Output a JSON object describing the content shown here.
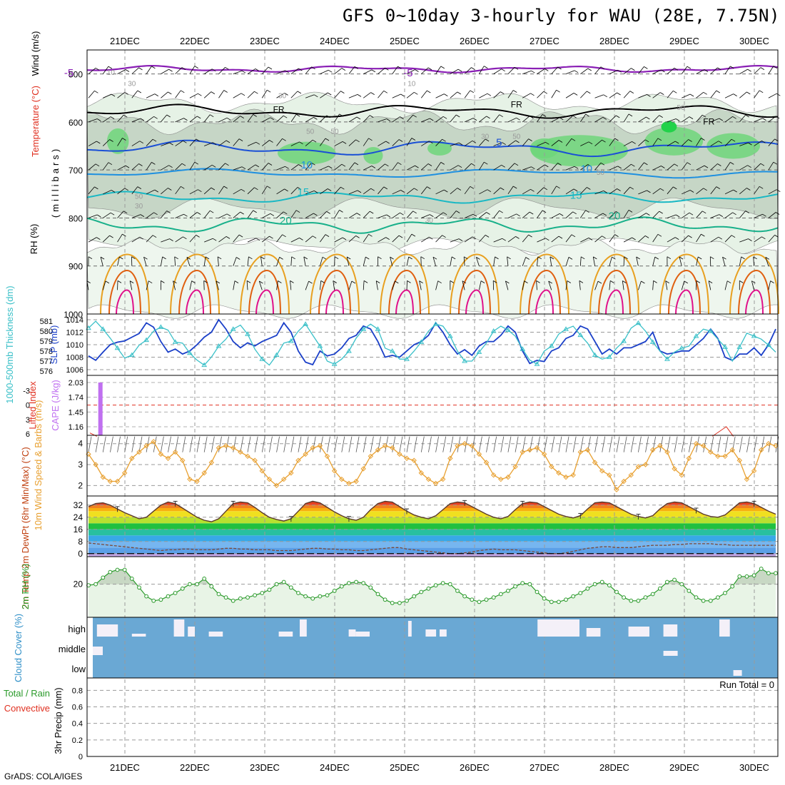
{
  "title": "GFS 0~10day 3-hourly for WAU (28E, 7.75N)",
  "credit": "GrADS: COLA/IGES",
  "colors": {
    "rh_fill_light": "#e6f2e6",
    "rh_fill_mid": "#c6d6c6",
    "rh_fill_dark": "#6fd67a",
    "wind_barb": "#000000",
    "temp_violet": "#8a1fb5",
    "temp_blue": "#1a4fd6",
    "temp_cyan": "#19b8c4",
    "temp_teal": "#18b08a",
    "temp_orange": "#e8a020",
    "temp_darkorange": "#e06010",
    "temp_magenta": "#e0108a",
    "slp_line": "#1a3fc8",
    "thickness_line": "#3ac0c8",
    "lifted_index": "#e03020",
    "cape_bar": "#c070f0",
    "wind_speed": "#e8a030",
    "cloud_blue": "#6aa8d4",
    "cloud_clear": "#f4f0f8",
    "rh_green": "#2a9a2a"
  },
  "chart_data": [
    {
      "panel": "upper_air",
      "type": "heatmap",
      "ylabel": "(millibars)",
      "ylabel_rh": "RH (%)",
      "ylabel_temp": "Temperature (°C)",
      "ylabel_wind": "Wind (m/s)",
      "yticks": [
        "500",
        "600",
        "700",
        "800",
        "900",
        "1000"
      ],
      "ylim": [
        1000,
        450
      ],
      "contour_labels": [
        {
          "text": "-5",
          "level_mb": 505,
          "day": 20.2
        },
        {
          "text": "-5",
          "level_mb": 505,
          "day": 25.05
        },
        {
          "text": "FR",
          "level_mb": 580,
          "day": 23.2
        },
        {
          "text": "FR",
          "level_mb": 570,
          "day": 26.6
        },
        {
          "text": "FR",
          "level_mb": 605,
          "day": 29.35
        },
        {
          "text": "5",
          "level_mb": 650,
          "day": 26.35
        },
        {
          "text": "10",
          "level_mb": 697,
          "day": 23.6
        },
        {
          "text": "10",
          "level_mb": 705,
          "day": 27.6
        },
        {
          "text": "15",
          "level_mb": 753,
          "day": 23.55
        },
        {
          "text": "15",
          "level_mb": 760,
          "day": 27.45
        },
        {
          "text": "20",
          "level_mb": 813,
          "day": 23.3
        },
        {
          "text": "20",
          "level_mb": 803,
          "day": 28.0
        }
      ],
      "rh_labels": [
        {
          "text": "10",
          "level_mb": 502,
          "day": 20.8
        },
        {
          "text": "30",
          "level_mb": 525,
          "day": 21.1
        },
        {
          "text": "50",
          "level_mb": 625,
          "day": 23.65
        },
        {
          "text": "30",
          "level_mb": 550,
          "day": 23.25
        },
        {
          "text": "10",
          "level_mb": 525,
          "day": 25.1
        },
        {
          "text": "50",
          "level_mb": 625,
          "day": 24.0
        },
        {
          "text": "30",
          "level_mb": 635,
          "day": 26.15
        },
        {
          "text": "50",
          "level_mb": 635,
          "day": 26.6
        },
        {
          "text": "50",
          "level_mb": 760,
          "day": 21.2
        },
        {
          "text": "30",
          "level_mb": 780,
          "day": 21.2
        },
        {
          "text": "30",
          "level_mb": 810,
          "day": 25.35
        },
        {
          "text": "50",
          "level_mb": 710,
          "day": 27.8
        },
        {
          "text": "50",
          "level_mb": 575,
          "day": 28.95
        }
      ],
      "temperature_contours_c": [
        -5,
        0,
        5,
        10,
        15,
        20
      ]
    },
    {
      "panel": "thickness_slp",
      "type": "line",
      "ylabel_left": "1000-500mb Thickness (dm)",
      "ylabel_right": "SLP (mb)",
      "thickness_ticks": [
        "576",
        "577",
        "578",
        "579",
        "580",
        "581"
      ],
      "slp_ticks": [
        "1006",
        "1008",
        "1010",
        "1012",
        "1014"
      ],
      "series": [
        {
          "name": "SLP",
          "unit": "mb",
          "values": [
            1008.2,
            1007.5,
            1008.8,
            1010.0,
            1010.4,
            1010.6,
            1011.2,
            1011.8,
            1013.5,
            1012.8,
            1010.5,
            1008.8,
            1009.3,
            1008.5,
            1009.0,
            1010.0,
            1011.2,
            1012.0,
            1014.0,
            1012.5,
            1010.5,
            1009.5,
            1010.3,
            1009.8,
            1010.5,
            1011.0,
            1011.5,
            1013.5,
            1012.0,
            1009.0,
            1007.2,
            1006.8,
            1009.0,
            1008.2,
            1008.5,
            1009.5,
            1011.0,
            1011.5,
            1013.0,
            1012.5,
            1010.5,
            1008.0,
            1008.3,
            1008.0,
            1009.0,
            1010.0,
            1010.5,
            1011.5,
            1013.5,
            1012.0,
            1010.0,
            1008.5,
            1009.2,
            1008.3,
            1009.8,
            1010.5,
            1010.5,
            1011.5,
            1013.0,
            1012.0,
            1009.0,
            1007.0,
            1007.5,
            1007.3,
            1009.0,
            1009.5,
            1011.0,
            1011.5,
            1013.0,
            1012.5,
            1010.5,
            1008.5,
            1009.3,
            1008.5,
            1009.5,
            1009.5,
            1010.0,
            1010.5,
            1012.0,
            1009.0,
            1008.5,
            1008.7,
            1009.0,
            1009.0,
            1010.0,
            1011.0,
            1012.5,
            1011.0,
            1008.0,
            1007.5,
            1008.5,
            1008.5,
            1009.5,
            1008.3,
            1010.0,
            1012.5
          ]
        },
        {
          "name": "Thickness",
          "unit": "dm",
          "values": [
            580.3,
            581.0,
            580.2,
            579.3,
            578.3,
            577.3,
            577.6,
            578.6,
            579.1,
            580.0,
            580.4,
            580.1,
            578.9,
            578.8,
            577.8,
            577.1,
            576.6,
            577.4,
            578.5,
            579.2,
            580.2,
            580.6,
            579.7,
            578.2,
            577.2,
            576.6,
            577.6,
            578.8,
            579.0,
            580.0,
            580.7,
            579.6,
            578.5,
            577.0,
            576.7,
            577.2,
            578.0,
            579.3,
            580.2,
            580.7,
            580.2,
            578.3,
            578.0,
            577.2,
            577.2,
            578.0,
            578.9,
            580.0,
            580.7,
            580.5,
            579.5,
            578.0,
            577.0,
            577.0,
            577.9,
            578.8,
            580.0,
            580.5,
            580.1,
            579.5,
            578.2,
            577.1,
            576.7,
            578.0,
            578.5,
            579.7,
            580.2,
            580.5,
            579.6,
            578.8,
            577.6,
            577.2,
            577.4,
            578.3,
            579.0,
            580.3,
            580.8,
            580.0,
            578.9,
            578.0,
            577.2,
            577.9,
            578.3,
            578.5,
            579.5,
            580.2,
            580.0,
            579.2,
            578.4,
            577.0,
            578.4,
            579.8,
            579.5,
            579.2,
            578.6,
            577.9
          ]
        }
      ]
    },
    {
      "panel": "cape_li",
      "type": "bar",
      "ylabel_left": "Lifted Index",
      "ylabel_right": "CAPE (J/kg)",
      "li_ticks": [
        "-3",
        "0",
        "3",
        "6"
      ],
      "cape_ticks": [
        "1.16",
        "1.45",
        "1.74",
        "2.03"
      ],
      "cape_bar": {
        "day": 20.65,
        "value": 2.03
      },
      "series": [
        {
          "name": "Lifted Index",
          "values_by_day": [
            [
              20.5,
              5.8
            ],
            [
              20.6,
              6.5
            ],
            [
              29.4,
              6.5
            ],
            [
              29.6,
              4.5
            ],
            [
              29.7,
              6.5
            ]
          ]
        }
      ]
    },
    {
      "panel": "wind_10m",
      "type": "line",
      "ylabel": "10m Wind Speed & Barbs (m/s)",
      "yticks": [
        "2",
        "3",
        "4"
      ],
      "ylim": [
        1.5,
        4.4
      ],
      "series": [
        {
          "name": "10m Wind Speed",
          "values": [
            3.5,
            3.0,
            2.4,
            2.2,
            2.2,
            2.6,
            3.3,
            3.6,
            3.9,
            4.1,
            3.5,
            3.3,
            3.6,
            3.2,
            2.3,
            2.2,
            2.6,
            3.1,
            3.8,
            3.9,
            3.8,
            3.6,
            3.4,
            3.2,
            2.7,
            2.3,
            2.0,
            2.3,
            2.6,
            3.2,
            3.5,
            3.8,
            3.9,
            3.4,
            2.7,
            2.3,
            2.1,
            2.2,
            2.8,
            3.4,
            3.7,
            3.9,
            3.8,
            3.5,
            3.3,
            3.2,
            2.6,
            2.3,
            2.1,
            2.3,
            3.3,
            3.9,
            4.0,
            3.9,
            3.5,
            3.1,
            2.5,
            2.3,
            2.4,
            2.9,
            3.6,
            3.7,
            3.8,
            3.5,
            2.9,
            2.6,
            2.4,
            2.5,
            3.6,
            3.7,
            3.1,
            2.7,
            2.5,
            1.8,
            2.2,
            2.5,
            2.9,
            3.0,
            3.7,
            3.9,
            3.6,
            2.8,
            2.5,
            3.3,
            4.0,
            3.9,
            3.6,
            3.4,
            3.4,
            3.7,
            3.2,
            2.3,
            2.7,
            3.7,
            4.0,
            3.9
          ]
        }
      ]
    },
    {
      "panel": "temp_2m",
      "type": "area",
      "ylabel": "2m Temp 2m DewPt (6hr Min/Max) (°C)",
      "yticks": [
        "0",
        "8",
        "16",
        "24",
        "32"
      ],
      "ylim": [
        -2,
        38
      ],
      "series": [
        {
          "name": "2m Temp",
          "values": [
            31,
            33,
            33.5,
            32,
            29.5,
            27,
            25,
            23,
            24,
            28,
            32,
            34,
            33,
            30,
            27,
            24,
            22,
            21,
            23,
            28,
            33,
            34,
            33.5,
            30.5,
            27,
            24,
            22.5,
            21.5,
            23,
            28,
            33,
            34.5,
            33.5,
            30.5,
            27.5,
            25,
            23,
            22,
            24,
            29,
            33,
            34.5,
            34,
            31,
            28,
            25.5,
            24,
            23,
            25,
            29,
            33,
            34,
            33.5,
            31,
            28.5,
            26,
            24,
            23,
            24.5,
            29,
            33,
            34,
            33.5,
            31,
            28.5,
            26,
            24.5,
            23.5,
            25,
            29.5,
            33.5,
            34,
            33.5,
            31,
            28.5,
            26,
            24.5,
            23.5,
            25,
            29.5,
            33,
            34,
            33.5,
            31,
            28.5,
            26,
            24.5,
            24,
            25.5,
            29.5,
            33.5,
            34,
            33,
            30.5,
            28,
            26
          ]
        },
        {
          "name": "2m DewPt",
          "values": [
            7,
            6.5,
            6,
            5.5,
            5,
            4.5,
            4,
            3.5,
            3,
            2.5,
            2,
            2.5,
            2.5,
            3,
            3,
            2.5,
            2.5,
            2.5,
            3,
            3.5,
            3.5,
            3,
            3,
            2.5,
            2.5,
            2.5,
            2,
            2,
            2,
            2.5,
            3,
            3.5,
            3.5,
            3,
            3,
            2.5,
            2.5,
            2,
            2,
            2.5,
            3,
            3.5,
            4,
            4,
            3,
            2.5,
            2,
            1.5,
            1,
            0.5,
            0,
            0,
            0.5,
            1,
            2,
            2.5,
            3,
            2.5,
            2.5,
            2.5,
            2,
            1.5,
            1,
            0.5,
            0,
            0,
            0.5,
            1.5,
            2.5,
            3.5,
            4,
            4.5,
            4.5,
            4,
            4,
            4,
            4.5,
            5,
            5.5,
            5.5,
            5.5,
            6,
            6,
            6.5,
            6.5,
            6.5,
            6.5,
            6,
            6,
            5.5,
            5.5,
            5.5,
            5.5,
            5.5,
            5.5,
            5.5
          ]
        }
      ]
    },
    {
      "panel": "rh_2m",
      "type": "line",
      "ylabel": "2m RH (%)",
      "yticks": [
        "20"
      ],
      "ylim": [
        -10,
        45
      ],
      "series": [
        {
          "name": "2m RH",
          "values": [
            19,
            20,
            26,
            31,
            33,
            33,
            25,
            17,
            9,
            5,
            6,
            9,
            12,
            16,
            20,
            20,
            25,
            18,
            11,
            8,
            5,
            7,
            8,
            10,
            12,
            15,
            20,
            22,
            17,
            12,
            9,
            7,
            9,
            10,
            14,
            18,
            21,
            22,
            21,
            17,
            11,
            6,
            3,
            3,
            5,
            9,
            13,
            16,
            19,
            21,
            20,
            14,
            9,
            6,
            4,
            6,
            8,
            11,
            14,
            18,
            21,
            20,
            13,
            7,
            4,
            4,
            6,
            9,
            12,
            16,
            20,
            22,
            19,
            13,
            8,
            5,
            5,
            8,
            11,
            16,
            22,
            24,
            20,
            14,
            8,
            5,
            5,
            8,
            12,
            18,
            27,
            27,
            28,
            34,
            30,
            30
          ]
        }
      ]
    },
    {
      "panel": "cloud_cover",
      "type": "bar",
      "ylabel": "Cloud Cover (%)",
      "yticks": [
        "high",
        "middle",
        "low"
      ]
    },
    {
      "panel": "precip",
      "type": "bar",
      "ylabel_left": "Total / Rain",
      "ylabel_left2": "Convective",
      "ylabel": "3hr Precip (mm)",
      "yticks": [
        "0",
        "0.2",
        "0.4",
        "0.6",
        "0.8"
      ],
      "ylim": [
        0,
        0.95
      ],
      "run_total": "Run Total = 0",
      "values": []
    }
  ],
  "days": [
    "21DEC",
    "22DEC",
    "23DEC",
    "24DEC",
    "25DEC",
    "26DEC",
    "27DEC",
    "28DEC",
    "29DEC",
    "30DEC"
  ]
}
